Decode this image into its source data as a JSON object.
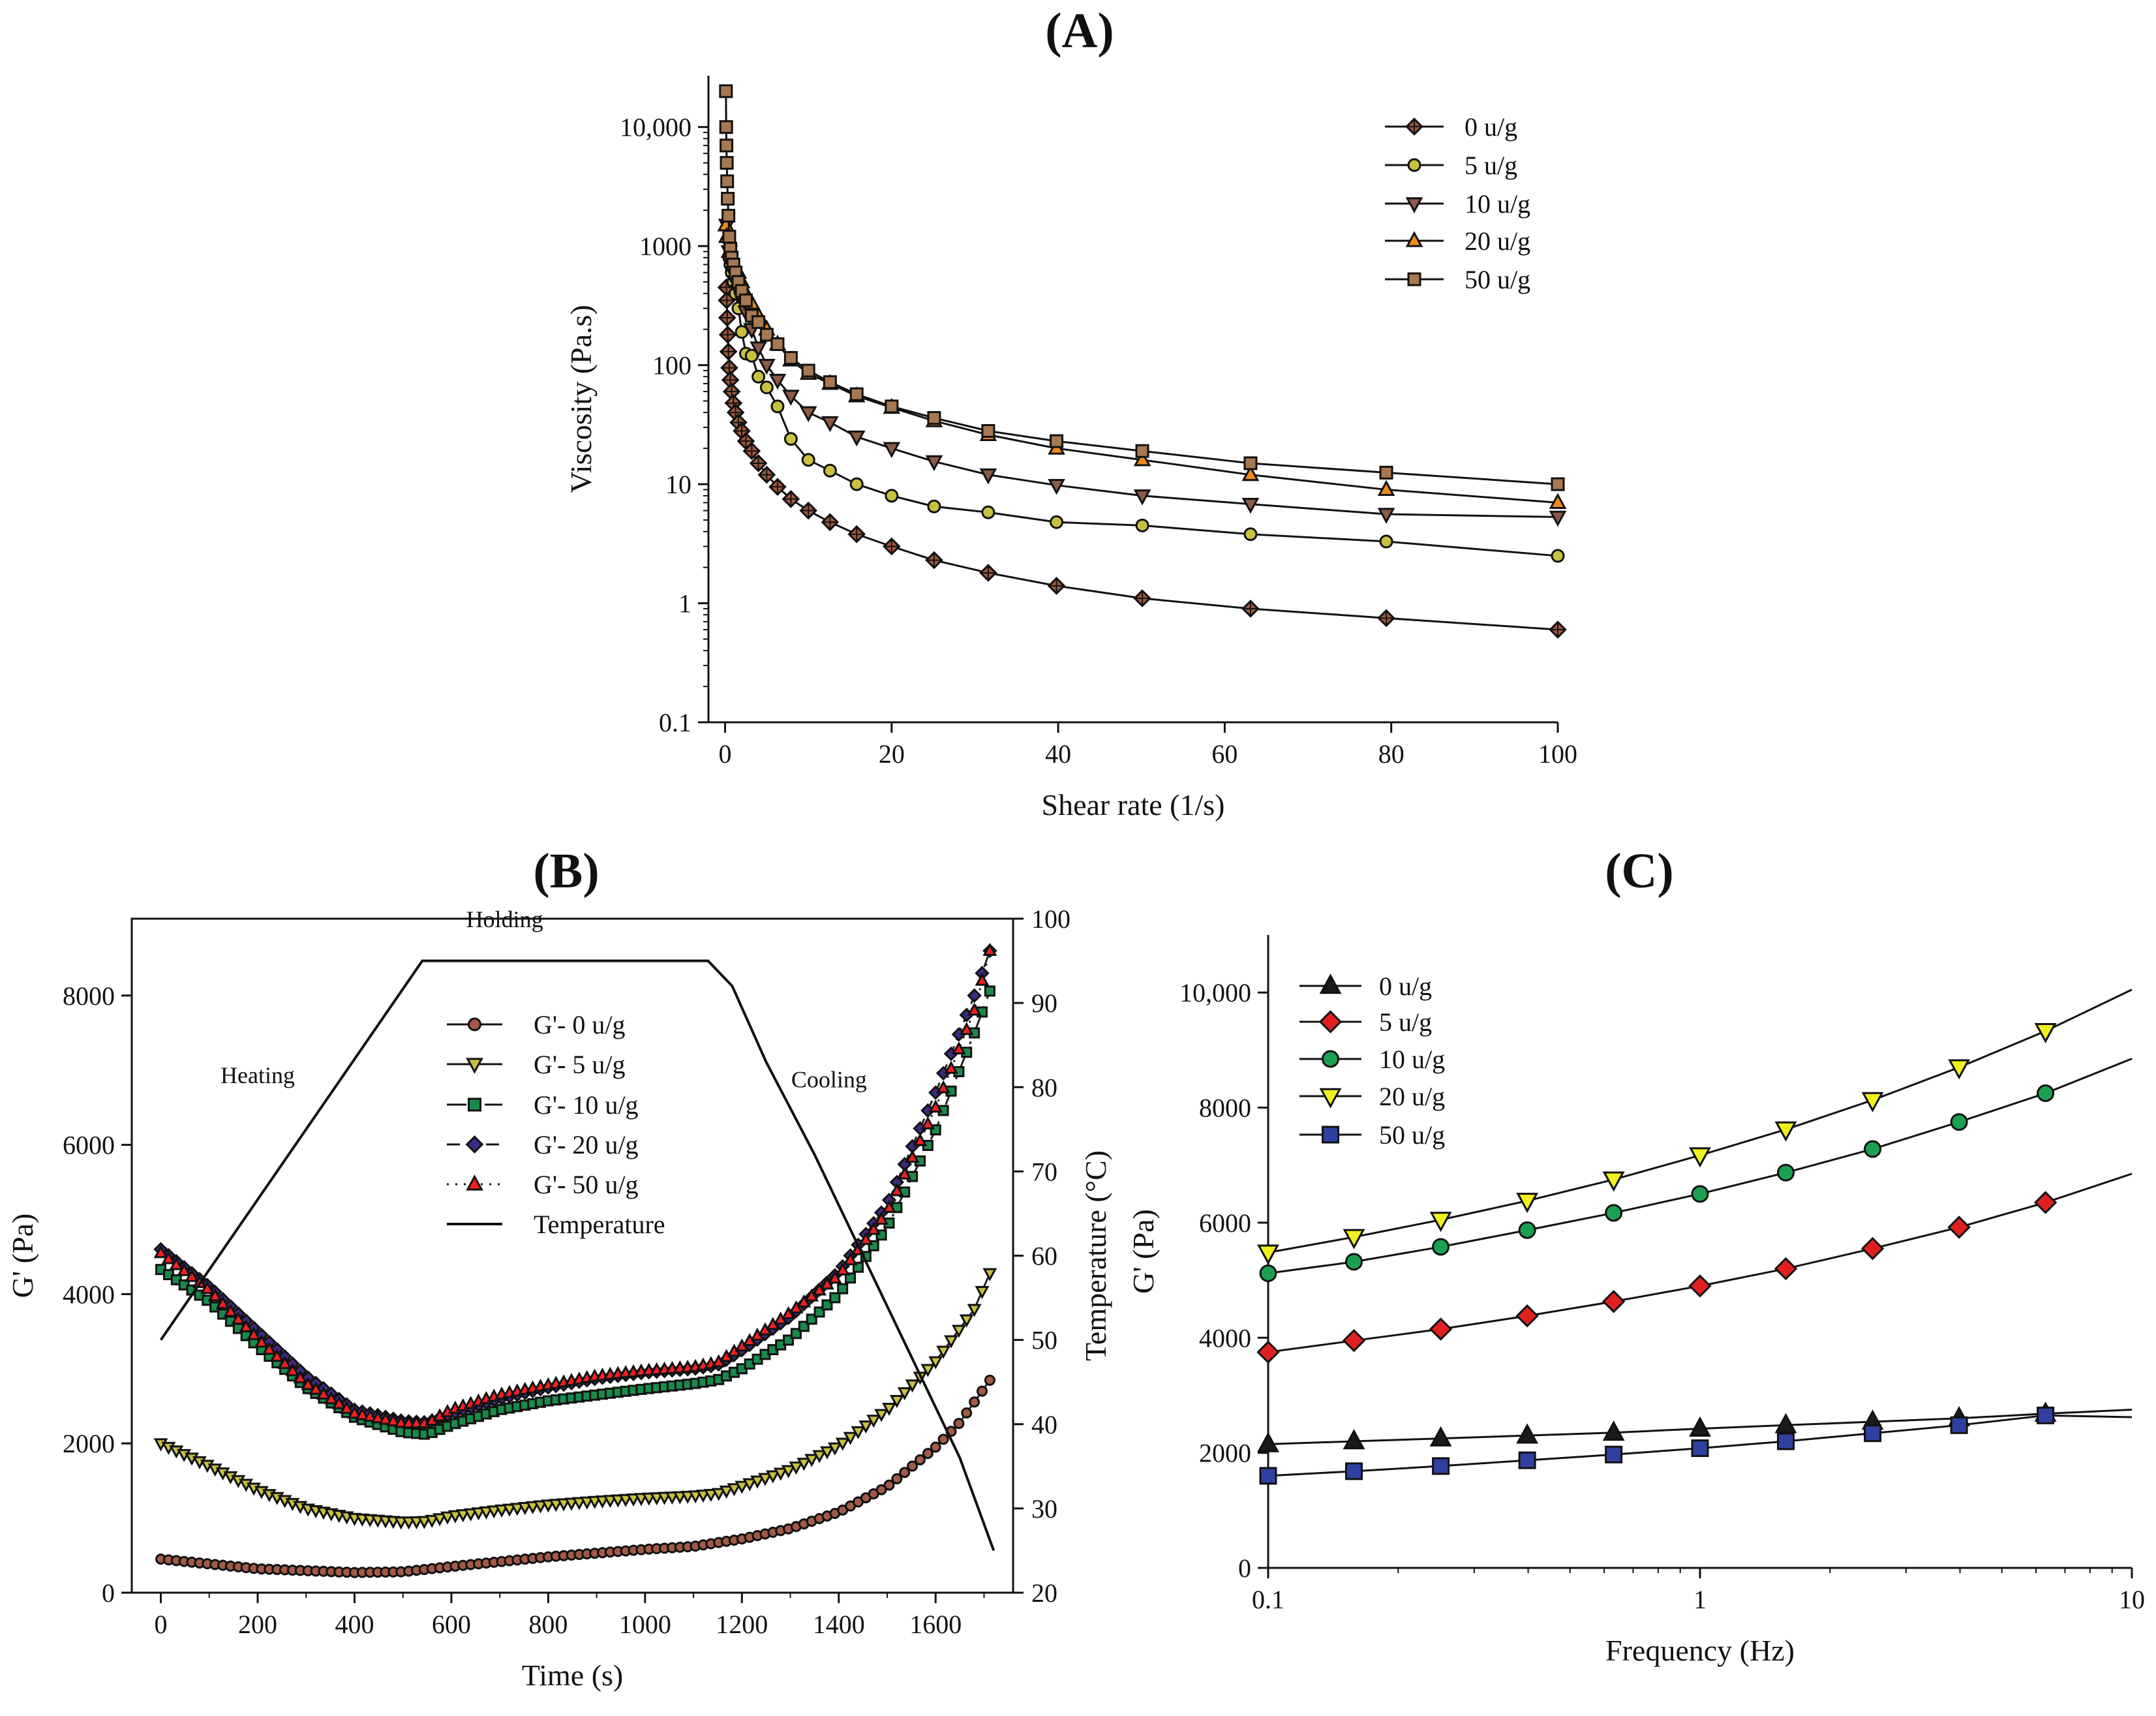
{
  "chart_data": [
    {
      "id": "A",
      "panel_label": "(A)",
      "type": "line",
      "xlabel": "Shear rate (1/s)",
      "ylabel": "Viscosity (Pa.s)",
      "yscale": "log",
      "xlim": [
        -2,
        100
      ],
      "ylim": [
        0.1,
        27000
      ],
      "xticks": [
        0,
        20,
        40,
        60,
        80,
        100
      ],
      "xtick_labels": [
        "0",
        "20",
        "40",
        "60",
        "80",
        "100"
      ],
      "yticks": [
        0.1,
        1,
        10,
        100,
        1000,
        10000
      ],
      "ytick_labels": [
        "0.1",
        "1",
        "10",
        "100",
        "1000",
        "10,000"
      ],
      "legend_position": "top-right",
      "series": [
        {
          "name": "0 u/g",
          "marker": "diamond-cross",
          "color": "#a0583c",
          "x": [
            0.16,
            0.2,
            0.25,
            0.32,
            0.4,
            0.5,
            0.63,
            0.79,
            1,
            1.26,
            1.6,
            2,
            2.5,
            3.2,
            4,
            5,
            6.3,
            7.9,
            10,
            12.6,
            15.8,
            20,
            25.1,
            31.6,
            39.8,
            50.1,
            63.1,
            79.4,
            100
          ],
          "y": [
            450,
            350,
            250,
            180,
            130,
            95,
            75,
            60,
            48,
            40,
            33,
            28,
            23,
            19,
            15,
            12,
            9.5,
            7.5,
            6,
            4.8,
            3.8,
            3,
            2.3,
            1.8,
            1.4,
            1.1,
            0.9,
            0.75,
            0.6
          ]
        },
        {
          "name": "5 u/g",
          "marker": "circle",
          "color": "#c8c040",
          "x": [
            0.5,
            0.63,
            0.79,
            1,
            1.26,
            1.6,
            2,
            2.5,
            3.2,
            4,
            5,
            6.3,
            7.9,
            10,
            12.6,
            15.8,
            20,
            25.1,
            31.6,
            39.8,
            50.1,
            63.1,
            79.4,
            100
          ],
          "y": [
            800,
            700,
            600,
            500,
            400,
            300,
            190,
            125,
            120,
            80,
            65,
            45,
            24,
            16,
            13,
            10,
            8,
            6.5,
            5.8,
            4.8,
            4.5,
            3.8,
            3.3,
            2.5
          ]
        },
        {
          "name": "10 u/g",
          "marker": "triangle-down",
          "color": "#8c5a48",
          "x": [
            0.2,
            0.5,
            1,
            1.26,
            1.6,
            2,
            2.5,
            3.2,
            4,
            5,
            6.3,
            7.9,
            10,
            12.6,
            15.8,
            20,
            25.1,
            31.6,
            39.8,
            50.1,
            63.1,
            79.4,
            100
          ],
          "y": [
            1500,
            900,
            600,
            500,
            420,
            360,
            280,
            200,
            140,
            100,
            75,
            55,
            40,
            33,
            25,
            20,
            15.5,
            12,
            9.8,
            8,
            6.8,
            5.6,
            5.3
          ]
        },
        {
          "name": "20 u/g",
          "marker": "triangle-up",
          "color": "#f08a1c",
          "x": [
            0.1,
            0.2,
            0.5,
            1,
            1.6,
            2,
            2.5,
            3.2,
            4,
            5,
            6.3,
            7.9,
            10,
            12.6,
            15.8,
            20,
            25.1,
            31.6,
            39.8,
            50.1,
            63.1,
            79.4,
            100
          ],
          "y": [
            1500,
            1200,
            900,
            700,
            600,
            500,
            400,
            330,
            260,
            200,
            150,
            110,
            85,
            70,
            55,
            44,
            34,
            26,
            20,
            16,
            12,
            9,
            7
          ]
        },
        {
          "name": "50 u/g",
          "marker": "square",
          "color": "#a87850",
          "x": [
            0.1,
            0.13,
            0.16,
            0.2,
            0.25,
            0.32,
            0.4,
            0.5,
            0.63,
            0.79,
            1,
            1.26,
            1.6,
            2,
            2.5,
            3.2,
            4,
            5,
            6.3,
            7.9,
            10,
            12.6,
            15.8,
            20,
            25.1,
            31.6,
            39.8,
            50.1,
            63.1,
            79.4,
            100
          ],
          "y": [
            20000,
            10000,
            7000,
            5000,
            3500,
            2500,
            1800,
            1200,
            950,
            800,
            700,
            600,
            500,
            420,
            350,
            260,
            230,
            180,
            150,
            115,
            90,
            72,
            57,
            45,
            36,
            28,
            23,
            19,
            15,
            12.5,
            10
          ]
        }
      ]
    },
    {
      "id": "B",
      "panel_label": "(B)",
      "type": "line",
      "xlabel": "Time (s)",
      "ylabel": "G' (Pa)",
      "y2label": "Temperature (°C)",
      "xlim": [
        -60,
        1760
      ],
      "ylim": [
        0,
        9030
      ],
      "y2lim": [
        20,
        100
      ],
      "xticks": [
        0,
        200,
        400,
        600,
        800,
        1000,
        1200,
        1400,
        1600
      ],
      "xtick_labels": [
        "0",
        "200",
        "400",
        "600",
        "800",
        "1000",
        "1200",
        "1400",
        "1600"
      ],
      "yticks": [
        0,
        2000,
        4000,
        6000,
        8000
      ],
      "ytick_labels": [
        "0",
        "2000",
        "4000",
        "6000",
        "8000"
      ],
      "y2ticks": [
        20,
        30,
        40,
        50,
        60,
        70,
        80,
        90,
        100
      ],
      "y2tick_labels": [
        "20",
        "30",
        "40",
        "50",
        "60",
        "70",
        "80",
        "90",
        "100"
      ],
      "annotations": [
        {
          "text": "Heating",
          "x": 200,
          "y2": 80.5
        },
        {
          "text": "Holding",
          "x": 710,
          "y2": 99
        },
        {
          "text": "Cooling",
          "x": 1380,
          "y2": 80
        }
      ],
      "legend_position": "top-center",
      "series": [
        {
          "name": "G'- 0 u/g",
          "marker": "circle",
          "color": "#a05a46",
          "dash": "",
          "x": [
            0,
            200,
            400,
            500,
            600,
            800,
            1000,
            1100,
            1200,
            1300,
            1400,
            1500,
            1600,
            1650,
            1720
          ],
          "y": [
            450,
            320,
            270,
            280,
            350,
            480,
            580,
            620,
            720,
            860,
            1080,
            1420,
            1950,
            2280,
            2920
          ]
        },
        {
          "name": "G'- 5 u/g",
          "marker": "triangle-down",
          "color": "#c8c040",
          "dash": "",
          "x": [
            0,
            100,
            200,
            300,
            400,
            500,
            550,
            600,
            700,
            800,
            900,
            1000,
            1100,
            1150,
            1200,
            1300,
            1400,
            1500,
            1600,
            1680,
            1720
          ],
          "y": [
            2000,
            1700,
            1380,
            1130,
            1000,
            950,
            960,
            1030,
            1110,
            1180,
            1230,
            1270,
            1300,
            1330,
            1430,
            1650,
            1970,
            2450,
            3100,
            3800,
            4400
          ]
        },
        {
          "name": "G'- 10 u/g",
          "marker": "square",
          "color": "#1a8a4a",
          "dash": "30 12 4 12",
          "x": [
            0,
            100,
            200,
            300,
            400,
            500,
            550,
            600,
            700,
            800,
            900,
            1000,
            1100,
            1150,
            1200,
            1300,
            1400,
            1500,
            1600,
            1680,
            1720
          ],
          "y": [
            4330,
            3900,
            3300,
            2750,
            2350,
            2150,
            2120,
            2250,
            2450,
            2570,
            2650,
            2730,
            2800,
            2850,
            3000,
            3400,
            4000,
            4900,
            6200,
            7500,
            8200
          ]
        },
        {
          "name": "G'- 20 u/g",
          "marker": "diamond",
          "color": "#3c2a80",
          "dash": "20 10",
          "x": [
            0,
            100,
            200,
            300,
            400,
            500,
            550,
            600,
            700,
            800,
            900,
            1000,
            1100,
            1150,
            1200,
            1300,
            1400,
            1500,
            1600,
            1680,
            1720
          ],
          "y": [
            4600,
            4100,
            3500,
            2900,
            2450,
            2300,
            2280,
            2400,
            2600,
            2750,
            2870,
            2950,
            3000,
            3050,
            3250,
            3700,
            4300,
            5200,
            6700,
            8000,
            8750
          ]
        },
        {
          "name": "G'- 50 u/g",
          "marker": "triangle-up",
          "color": "#f02020",
          "dash": "3 10",
          "x": [
            0,
            100,
            200,
            300,
            400,
            500,
            550,
            600,
            700,
            800,
            900,
            1000,
            1100,
            1150,
            1200,
            1300,
            1400,
            1500,
            1600,
            1680,
            1720
          ],
          "y": [
            4550,
            4050,
            3400,
            2800,
            2400,
            2270,
            2270,
            2450,
            2650,
            2780,
            2900,
            2970,
            3020,
            3080,
            3300,
            3750,
            4250,
            5100,
            6500,
            7800,
            8800
          ]
        },
        {
          "name": "Temperature",
          "marker": "none",
          "color": "#000000",
          "dash": "",
          "axis": "y2",
          "x": [
            0,
            540,
            1130,
            1180,
            1250,
            1350,
            1450,
            1550,
            1650,
            1720
          ],
          "y": [
            50,
            95,
            95,
            92,
            83,
            72,
            60,
            48,
            36,
            25
          ]
        }
      ]
    },
    {
      "id": "C",
      "panel_label": "(C)",
      "type": "line",
      "xlabel": "Frequency (Hz)",
      "ylabel": "G' (Pa)",
      "xscale": "log",
      "xlim": [
        0.1,
        10
      ],
      "ylim": [
        0,
        11000
      ],
      "xticks": [
        0.1,
        1,
        10
      ],
      "xtick_labels": [
        "0.1",
        "1",
        "10"
      ],
      "yticks": [
        0,
        2000,
        4000,
        6000,
        8000,
        10000
      ],
      "ytick_labels": [
        "0",
        "2000",
        "4000",
        "6000",
        "8000",
        "10,000"
      ],
      "legend_position": "top-left",
      "series": [
        {
          "name": "0 u/g",
          "marker": "triangle-up",
          "color": "#1a1a1a",
          "x": [
            0.1,
            0.158,
            0.251,
            0.398,
            0.631,
            1,
            1.58,
            2.51,
            3.98,
            6.31,
            10
          ],
          "y": [
            2150,
            2200,
            2250,
            2300,
            2350,
            2420,
            2480,
            2540,
            2600,
            2680,
            2750
          ]
        },
        {
          "name": "5 u/g",
          "marker": "diamond",
          "color": "#e02020",
          "x": [
            0.1,
            0.158,
            0.251,
            0.398,
            0.631,
            1,
            1.58,
            2.51,
            3.98,
            6.31,
            10
          ],
          "y": [
            3750,
            3950,
            4150,
            4380,
            4630,
            4900,
            5200,
            5550,
            5920,
            6350,
            6850
          ]
        },
        {
          "name": "10 u/g",
          "marker": "circle",
          "color": "#1aa050",
          "x": [
            0.1,
            0.158,
            0.251,
            0.398,
            0.631,
            1,
            1.58,
            2.51,
            3.98,
            6.31,
            10
          ],
          "y": [
            5120,
            5320,
            5580,
            5870,
            6170,
            6500,
            6870,
            7280,
            7750,
            8250,
            8850
          ]
        },
        {
          "name": "20 u/g",
          "marker": "triangle-down",
          "color": "#f0f020",
          "x": [
            0.1,
            0.158,
            0.251,
            0.398,
            0.631,
            1,
            1.58,
            2.51,
            3.98,
            6.31,
            10
          ],
          "y": [
            5480,
            5750,
            6050,
            6380,
            6750,
            7170,
            7620,
            8130,
            8700,
            9330,
            10050
          ]
        },
        {
          "name": "50 u/g",
          "marker": "square",
          "color": "#3040a0",
          "x": [
            0.1,
            0.158,
            0.251,
            0.398,
            0.631,
            1,
            1.58,
            2.51,
            3.98,
            6.31,
            10
          ],
          "y": [
            1600,
            1680,
            1770,
            1870,
            1970,
            2080,
            2200,
            2340,
            2480,
            2650,
            2620
          ]
        }
      ]
    }
  ]
}
